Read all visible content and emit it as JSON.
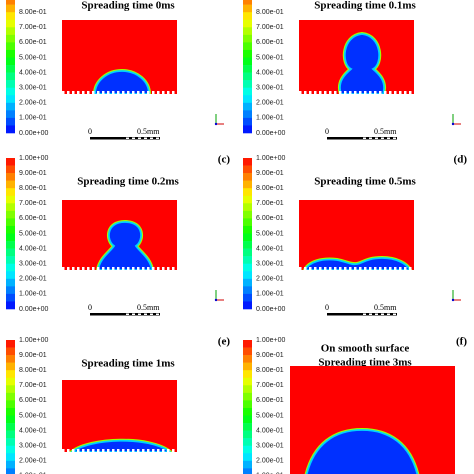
{
  "colorbar_labels": [
    "1.00e+00",
    "9.00e-01",
    "8.00e-01",
    "7.00e-01",
    "6.00e-01",
    "5.00e-01",
    "4.00e-01",
    "3.00e-01",
    "2.00e-01",
    "1.00e-01",
    "0.00e+00"
  ],
  "panels": [
    {
      "title": [
        "Spreading time 0ms"
      ],
      "scale_labels": [
        "0",
        "0.5mm"
      ]
    },
    {
      "title": [
        "Spreading time 0.1ms"
      ],
      "scale_labels": [
        "0",
        "0.5mm"
      ]
    },
    {
      "label": "(c)",
      "title": [
        "Spreading time 0.2ms"
      ],
      "scale_labels": [
        "0",
        "0.5mm"
      ]
    },
    {
      "label": "(d)",
      "title": [
        "Spreading time 0.5ms"
      ],
      "scale_labels": [
        "0",
        "0.5mm"
      ]
    },
    {
      "label": "(e)",
      "title": [
        "Spreading time 1ms"
      ]
    },
    {
      "label": "(f)",
      "title": [
        "On smooth surface",
        "Spreading time 3ms"
      ]
    }
  ]
}
